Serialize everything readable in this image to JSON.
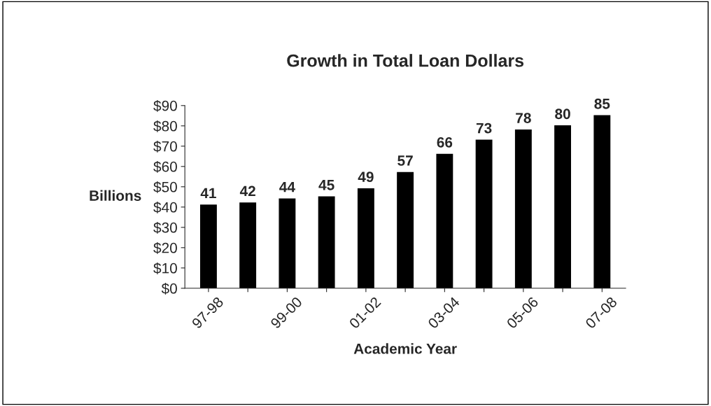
{
  "chart_data": {
    "type": "bar",
    "title": "Growth in Total Loan Dollars",
    "xlabel": "Academic Year",
    "ylabel": "Billions",
    "categories": [
      "97-98",
      null,
      "99-00",
      null,
      "01-02",
      null,
      "03-04",
      null,
      "05-06",
      null,
      "07-08"
    ],
    "values": [
      41,
      42,
      44,
      45,
      49,
      57,
      66,
      73,
      78,
      80,
      85
    ],
    "color": "#000000",
    "ylim": [
      0,
      90
    ],
    "yticks": [
      {
        "value": 0,
        "label": "$0"
      },
      {
        "value": 10,
        "label": "$10"
      },
      {
        "value": 20,
        "label": "$20"
      },
      {
        "value": 30,
        "label": "$30"
      },
      {
        "value": 40,
        "label": "$40"
      },
      {
        "value": 50,
        "label": "$50"
      },
      {
        "value": 60,
        "label": "$60"
      },
      {
        "value": 70,
        "label": "$70"
      },
      {
        "value": 80,
        "label": "$80"
      },
      {
        "value": 90,
        "label": "$90"
      }
    ],
    "data_labels": true,
    "grid": false,
    "legend": false
  }
}
